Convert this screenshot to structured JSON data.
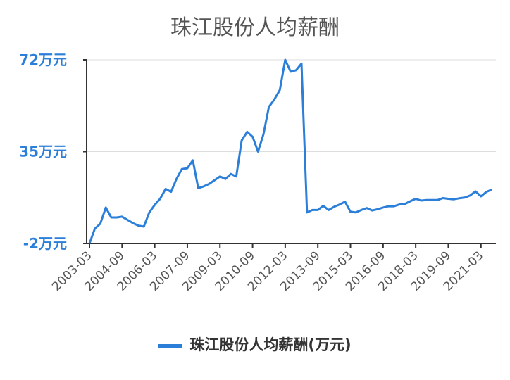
{
  "chart_data": {
    "type": "line",
    "title": "珠江股份人均薪酬",
    "xlabel": "",
    "ylabel": "",
    "y_ticks": [
      "72万元",
      "35万元",
      "-2万元"
    ],
    "y_tick_values": [
      72,
      35,
      -2
    ],
    "ylim": [
      -2,
      72
    ],
    "x_ticks": [
      "2003-03",
      "2004-09",
      "2006-03",
      "2007-09",
      "2009-03",
      "2010-09",
      "2012-03",
      "2013-09",
      "2015-03",
      "2016-09",
      "2018-03",
      "2019-09",
      "2021-03"
    ],
    "grid": true,
    "legend_position": "bottom",
    "series": [
      {
        "name": "珠江股份人均薪酬(万元)",
        "color": "#2b7fd9",
        "x": [
          "2003-03",
          "2003-06",
          "2003-09",
          "2003-12",
          "2004-03",
          "2004-06",
          "2004-09",
          "2004-12",
          "2005-03",
          "2005-06",
          "2005-09",
          "2005-12",
          "2006-03",
          "2006-06",
          "2006-09",
          "2006-12",
          "2007-03",
          "2007-06",
          "2007-09",
          "2007-12",
          "2008-03",
          "2008-06",
          "2008-09",
          "2008-12",
          "2009-03",
          "2009-06",
          "2009-09",
          "2009-12",
          "2010-03",
          "2010-06",
          "2010-09",
          "2010-12",
          "2011-03",
          "2011-06",
          "2011-09",
          "2011-12",
          "2012-03",
          "2012-06",
          "2012-09",
          "2012-12",
          "2013-03",
          "2013-06",
          "2013-09",
          "2013-12",
          "2014-03",
          "2014-06",
          "2014-09",
          "2014-12",
          "2015-03",
          "2015-06",
          "2015-09",
          "2015-12",
          "2016-03",
          "2016-06",
          "2016-09",
          "2016-12",
          "2017-03",
          "2017-06",
          "2017-09",
          "2017-12",
          "2018-03",
          "2018-06",
          "2018-09",
          "2018-12",
          "2019-03",
          "2019-06",
          "2019-09",
          "2019-12",
          "2020-03",
          "2020-06",
          "2020-09",
          "2020-12",
          "2021-03",
          "2021-06",
          "2021-09"
        ],
        "values": [
          -2,
          4,
          6,
          12.5,
          8.5,
          8.5,
          8.8,
          7.5,
          6.2,
          5.2,
          4.8,
          10.5,
          13.5,
          16,
          20,
          18.8,
          24,
          28,
          28.3,
          31.5,
          20.3,
          21,
          22,
          23.5,
          25,
          24,
          26,
          25,
          39.5,
          43,
          41,
          35,
          42,
          53,
          56,
          59.8,
          72,
          67.2,
          67.8,
          70.5,
          10.5,
          11.5,
          11.5,
          13.2,
          11.5,
          12.8,
          13.7,
          14.8,
          10.8,
          10.5,
          11.5,
          12.3,
          11.3,
          11.8,
          12.5,
          13,
          13,
          13.7,
          13.9,
          15,
          16,
          15.3,
          15.5,
          15.5,
          15.5,
          16.3,
          16,
          15.8,
          16.2,
          16.5,
          17.3,
          19,
          17,
          18.8,
          19.7
        ]
      }
    ]
  }
}
